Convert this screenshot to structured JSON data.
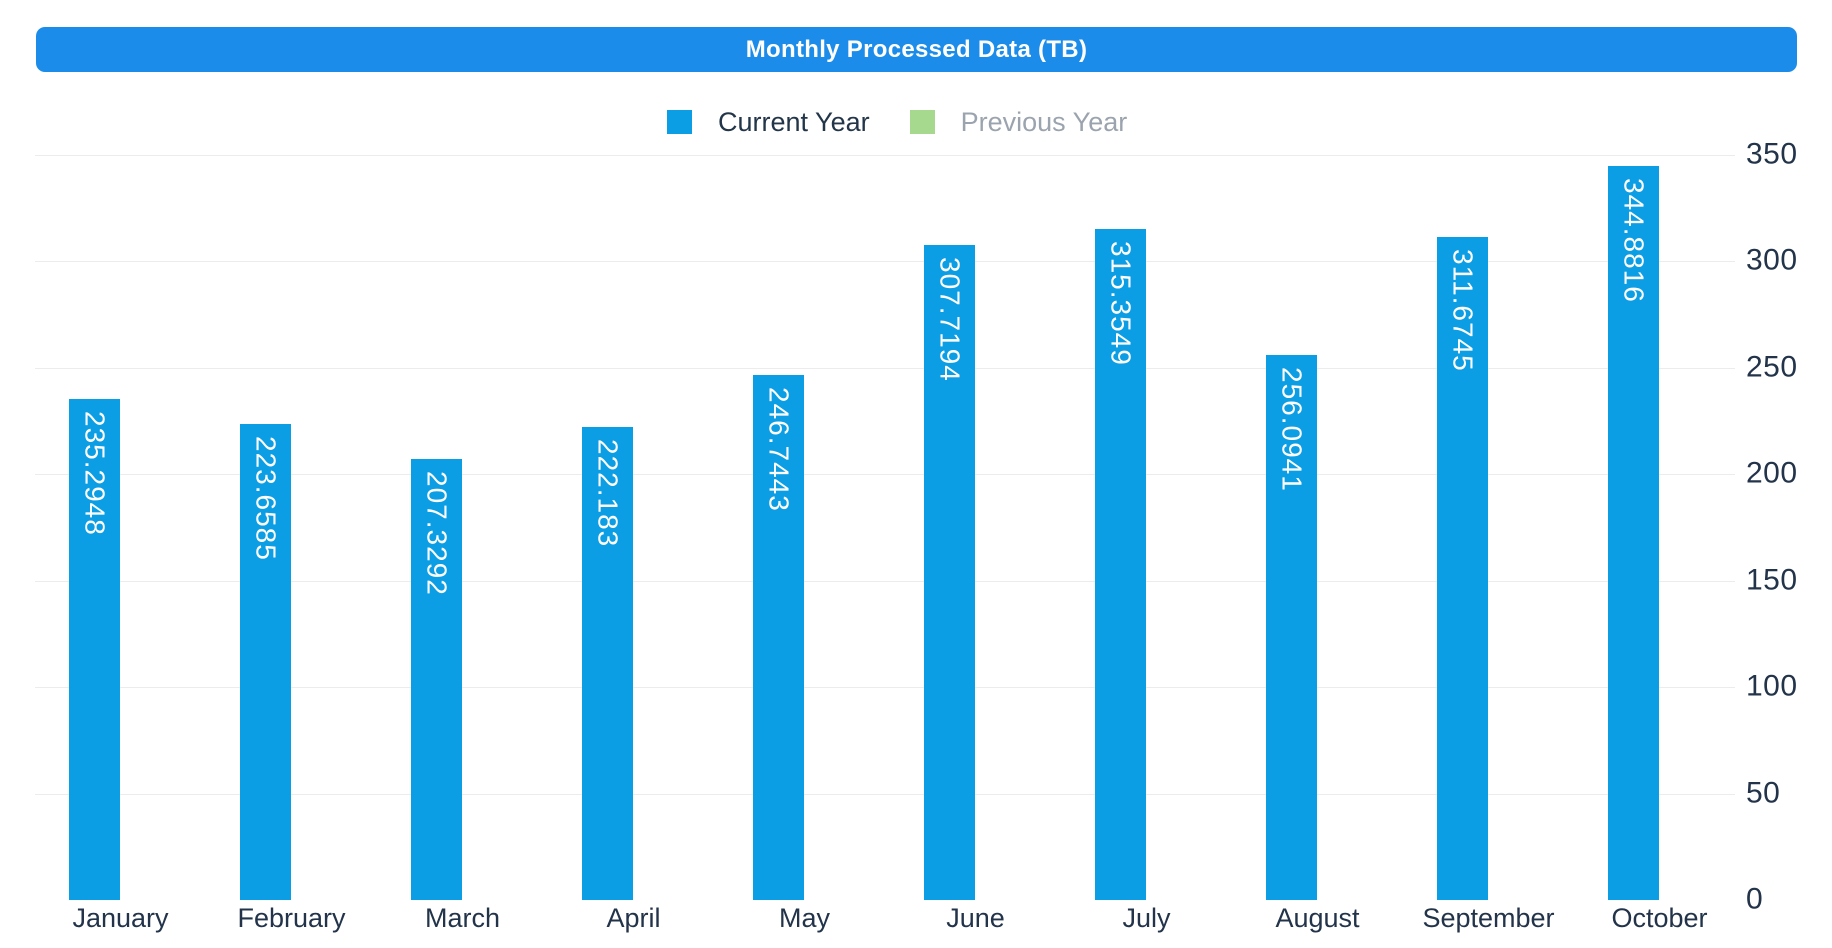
{
  "page": {
    "background": "#ffffff"
  },
  "header": {
    "title": "Monthly Processed Data (TB)",
    "bg_color": "#1b8ce9",
    "text_color": "#ffffff"
  },
  "legend": {
    "position": "top",
    "items": [
      {
        "label": "Current Year",
        "color": "#0c9ee4",
        "active": true
      },
      {
        "label": "Previous Year",
        "color": "#a6d98e",
        "active": false
      }
    ]
  },
  "axis": {
    "gridline_color": "#ececec",
    "label_color": "#22334a",
    "y_side": "right"
  },
  "chart_data": {
    "type": "bar",
    "title": "Monthly Processed Data (TB)",
    "categories": [
      "January",
      "February",
      "March",
      "April",
      "May",
      "June",
      "July",
      "August",
      "September",
      "October"
    ],
    "series": [
      {
        "name": "Current Year",
        "color": "#0c9ee4",
        "visible": true,
        "values": [
          235.2948,
          223.6585,
          207.3292,
          222.183,
          246.7443,
          307.7194,
          315.3549,
          256.0941,
          311.6745,
          344.8816
        ]
      },
      {
        "name": "Previous Year",
        "color": "#a6d98e",
        "visible": false,
        "values": []
      }
    ],
    "value_labels_rotated": true,
    "value_label_color": "#ffffff",
    "yticks": [
      0,
      50,
      100,
      150,
      200,
      250,
      300,
      350
    ],
    "ylim": [
      0,
      350
    ],
    "grid": true,
    "legend_position": "top"
  }
}
